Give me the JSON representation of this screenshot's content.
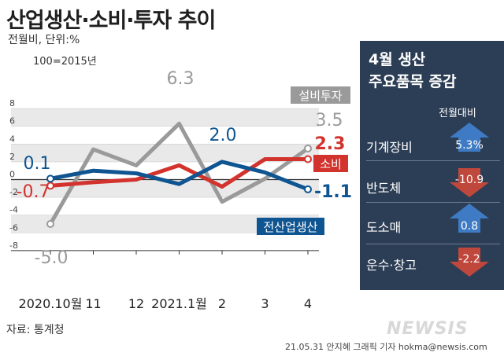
{
  "title": "산업생산·소비·투자 추이",
  "unit_label": "전월비, 단위:%",
  "base_label": "100=2015년",
  "source": "자료: 통계청",
  "credit": "21.05.31 안지혜 그래픽 기자 hokma@newsis.com",
  "watermark": "NEWSIS",
  "chart_data": {
    "type": "line",
    "title": "산업생산·소비·투자 추이",
    "ylabel": "전월비, 단위:%",
    "ylim": [
      -8,
      8
    ],
    "yticks": [
      8,
      6,
      4,
      2,
      0,
      -2,
      -4,
      -6,
      -8
    ],
    "x_labels": [
      "2020.10월",
      "11",
      "12",
      "2021.1월",
      "2",
      "3",
      "4"
    ],
    "series": [
      {
        "name": "설비투자",
        "color": "#9a9a9a",
        "values": [
          -5.0,
          3.4,
          1.6,
          6.3,
          -2.5,
          0.1,
          3.5
        ],
        "start_label": "-5.0",
        "end_label": "3.5",
        "peak_label": "6.3"
      },
      {
        "name": "소비",
        "color": "#d2332d",
        "values": [
          -0.7,
          -0.3,
          0.0,
          1.6,
          -0.8,
          2.3,
          2.3
        ],
        "start_label": "-0.7",
        "end_label": "2.3"
      },
      {
        "name": "전산업생산",
        "color": "#0f5591",
        "values": [
          0.1,
          1.0,
          0.7,
          -0.5,
          2.0,
          0.8,
          -1.1
        ],
        "start_label": "0.1",
        "end_label": "-1.1",
        "peak_label": "2.0"
      }
    ]
  },
  "panel": {
    "title_line1": "4월 생산",
    "title_line2": "주요품목 증감",
    "subtitle": "전월대비",
    "items": [
      {
        "name": "기계장비",
        "value": "5.3%",
        "direction": "up"
      },
      {
        "name": "반도체",
        "value": "-10.9",
        "direction": "down"
      },
      {
        "name": "도소매",
        "value": "0.8",
        "direction": "up"
      },
      {
        "name": "운수·창고",
        "value": "-2.2",
        "direction": "down"
      }
    ],
    "up_color": "#3e7bc4",
    "down_color": "#c0473b"
  }
}
